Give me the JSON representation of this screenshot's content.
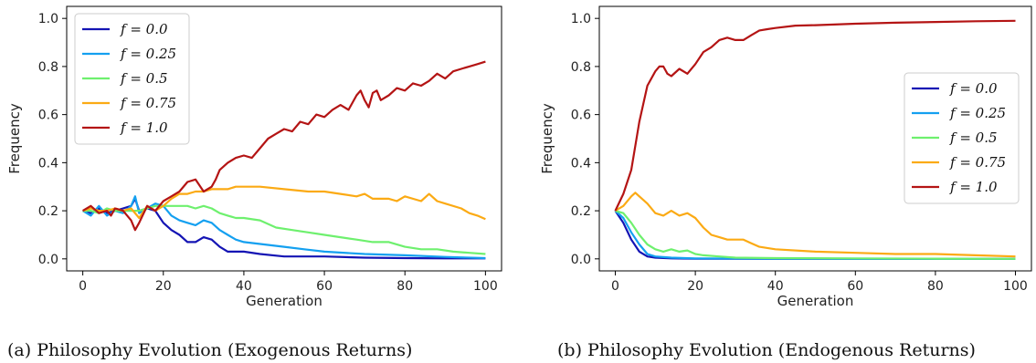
{
  "chart_data": [
    {
      "type": "line",
      "title": "",
      "xlabel": "Generation",
      "ylabel": "Frequency",
      "xlim": [
        -4,
        104
      ],
      "ylim": [
        -0.05,
        1.05
      ],
      "xticks": [
        "0",
        "20",
        "40",
        "60",
        "80",
        "100"
      ],
      "yticks": [
        "0.0",
        "0.2",
        "0.4",
        "0.6",
        "0.8",
        "1.0"
      ],
      "legend": "top-left",
      "caption": "(a) Philosophy Evolution (Exogenous Returns)",
      "series": [
        {
          "name": "f = 0.0",
          "color": "#1414b4",
          "x": [
            0,
            2,
            4,
            6,
            8,
            10,
            12,
            13,
            14,
            16,
            18,
            20,
            22,
            24,
            26,
            28,
            30,
            32,
            34,
            36,
            40,
            44,
            50,
            60,
            70,
            80,
            90,
            100
          ],
          "y": [
            0.2,
            0.19,
            0.21,
            0.19,
            0.2,
            0.21,
            0.22,
            0.25,
            0.2,
            0.21,
            0.2,
            0.15,
            0.12,
            0.1,
            0.07,
            0.07,
            0.09,
            0.08,
            0.05,
            0.03,
            0.03,
            0.02,
            0.01,
            0.01,
            0.005,
            0.003,
            0.002,
            0.002
          ]
        },
        {
          "name": "f = 0.25",
          "color": "#14a0f0",
          "x": [
            0,
            2,
            4,
            6,
            8,
            10,
            12,
            13,
            14,
            16,
            18,
            20,
            22,
            24,
            26,
            28,
            30,
            32,
            34,
            36,
            38,
            40,
            45,
            50,
            55,
            60,
            70,
            80,
            90,
            100
          ],
          "y": [
            0.2,
            0.18,
            0.22,
            0.18,
            0.2,
            0.19,
            0.22,
            0.26,
            0.19,
            0.21,
            0.23,
            0.22,
            0.18,
            0.16,
            0.15,
            0.14,
            0.16,
            0.15,
            0.12,
            0.1,
            0.08,
            0.07,
            0.06,
            0.05,
            0.04,
            0.03,
            0.02,
            0.015,
            0.008,
            0.003
          ]
        },
        {
          "name": "f = 0.5",
          "color": "#6ef06e",
          "x": [
            0,
            2,
            4,
            6,
            8,
            10,
            12,
            14,
            16,
            18,
            20,
            22,
            24,
            26,
            28,
            30,
            32,
            34,
            36,
            38,
            40,
            44,
            48,
            52,
            56,
            60,
            64,
            68,
            72,
            76,
            80,
            84,
            88,
            92,
            96,
            100
          ],
          "y": [
            0.2,
            0.2,
            0.19,
            0.21,
            0.2,
            0.2,
            0.2,
            0.2,
            0.21,
            0.22,
            0.22,
            0.22,
            0.22,
            0.22,
            0.21,
            0.22,
            0.21,
            0.19,
            0.18,
            0.17,
            0.17,
            0.16,
            0.13,
            0.12,
            0.11,
            0.1,
            0.09,
            0.08,
            0.07,
            0.07,
            0.05,
            0.04,
            0.04,
            0.03,
            0.025,
            0.02
          ]
        },
        {
          "name": "f = 0.75",
          "color": "#fbaa14",
          "x": [
            0,
            2,
            4,
            6,
            8,
            10,
            12,
            14,
            16,
            18,
            20,
            22,
            24,
            26,
            28,
            30,
            32,
            34,
            36,
            38,
            40,
            44,
            50,
            56,
            60,
            64,
            68,
            70,
            72,
            76,
            78,
            80,
            84,
            86,
            88,
            90,
            94,
            96,
            98,
            100
          ],
          "y": [
            0.2,
            0.21,
            0.2,
            0.2,
            0.21,
            0.2,
            0.21,
            0.17,
            0.22,
            0.2,
            0.22,
            0.25,
            0.27,
            0.27,
            0.28,
            0.28,
            0.29,
            0.29,
            0.29,
            0.3,
            0.3,
            0.3,
            0.29,
            0.28,
            0.28,
            0.27,
            0.26,
            0.27,
            0.25,
            0.25,
            0.24,
            0.26,
            0.24,
            0.27,
            0.24,
            0.23,
            0.21,
            0.19,
            0.18,
            0.165
          ]
        },
        {
          "name": "f = 1.0",
          "color": "#b41414",
          "x": [
            0,
            2,
            4,
            6,
            7,
            8,
            10,
            12,
            13,
            14,
            16,
            18,
            20,
            22,
            24,
            26,
            28,
            30,
            32,
            33,
            34,
            36,
            38,
            40,
            42,
            44,
            46,
            48,
            50,
            52,
            54,
            56,
            58,
            60,
            62,
            64,
            66,
            68,
            69,
            70,
            71,
            72,
            73,
            74,
            76,
            78,
            80,
            82,
            84,
            86,
            88,
            90,
            92,
            94,
            96,
            98,
            100
          ],
          "y": [
            0.2,
            0.22,
            0.19,
            0.2,
            0.18,
            0.21,
            0.2,
            0.16,
            0.12,
            0.15,
            0.22,
            0.2,
            0.24,
            0.26,
            0.28,
            0.32,
            0.33,
            0.28,
            0.3,
            0.33,
            0.37,
            0.4,
            0.42,
            0.43,
            0.42,
            0.46,
            0.5,
            0.52,
            0.54,
            0.53,
            0.57,
            0.56,
            0.6,
            0.59,
            0.62,
            0.64,
            0.62,
            0.68,
            0.7,
            0.66,
            0.63,
            0.69,
            0.7,
            0.66,
            0.68,
            0.71,
            0.7,
            0.73,
            0.72,
            0.74,
            0.77,
            0.75,
            0.78,
            0.79,
            0.8,
            0.81,
            0.82
          ]
        }
      ]
    },
    {
      "type": "line",
      "title": "",
      "xlabel": "Generation",
      "ylabel": "Frequency",
      "xlim": [
        -4,
        104
      ],
      "ylim": [
        -0.05,
        1.05
      ],
      "xticks": [
        "0",
        "20",
        "40",
        "60",
        "80",
        "100"
      ],
      "yticks": [
        "0.0",
        "0.2",
        "0.4",
        "0.6",
        "0.8",
        "1.0"
      ],
      "legend": "center-right",
      "caption": "(b) Philosophy Evolution (Endogenous Returns)",
      "series": [
        {
          "name": "f = 0.0",
          "color": "#1414b4",
          "x": [
            0,
            2,
            4,
            6,
            8,
            10,
            14,
            20,
            40,
            60,
            80,
            100
          ],
          "y": [
            0.2,
            0.15,
            0.08,
            0.03,
            0.01,
            0.005,
            0.002,
            0.001,
            0.0,
            0.0,
            0.0,
            0.0
          ]
        },
        {
          "name": "f = 0.25",
          "color": "#14a0f0",
          "x": [
            0,
            2,
            4,
            6,
            8,
            10,
            14,
            20,
            40,
            60,
            80,
            100
          ],
          "y": [
            0.2,
            0.17,
            0.11,
            0.06,
            0.02,
            0.01,
            0.005,
            0.002,
            0.001,
            0.0,
            0.0,
            0.0
          ]
        },
        {
          "name": "f = 0.5",
          "color": "#6ef06e",
          "x": [
            0,
            2,
            4,
            6,
            8,
            10,
            12,
            14,
            16,
            18,
            20,
            22,
            26,
            30,
            40,
            60,
            80,
            100
          ],
          "y": [
            0.2,
            0.19,
            0.15,
            0.1,
            0.06,
            0.04,
            0.03,
            0.04,
            0.03,
            0.035,
            0.02,
            0.015,
            0.01,
            0.005,
            0.003,
            0.002,
            0.001,
            0.0
          ]
        },
        {
          "name": "f = 0.75",
          "color": "#fbaa14",
          "x": [
            0,
            2,
            4,
            5,
            6,
            8,
            10,
            12,
            14,
            16,
            18,
            20,
            22,
            24,
            26,
            28,
            30,
            32,
            34,
            36,
            40,
            50,
            60,
            70,
            80,
            90,
            100
          ],
          "y": [
            0.2,
            0.22,
            0.26,
            0.275,
            0.26,
            0.23,
            0.19,
            0.18,
            0.2,
            0.18,
            0.19,
            0.17,
            0.13,
            0.1,
            0.09,
            0.08,
            0.08,
            0.08,
            0.065,
            0.05,
            0.04,
            0.03,
            0.025,
            0.02,
            0.02,
            0.015,
            0.01
          ]
        },
        {
          "name": "f = 1.0",
          "color": "#b41414",
          "x": [
            0,
            2,
            4,
            6,
            8,
            10,
            11,
            12,
            13,
            14,
            16,
            18,
            20,
            22,
            24,
            26,
            28,
            30,
            32,
            34,
            36,
            38,
            40,
            45,
            50,
            60,
            70,
            80,
            90,
            100
          ],
          "y": [
            0.2,
            0.27,
            0.37,
            0.57,
            0.72,
            0.78,
            0.8,
            0.8,
            0.77,
            0.76,
            0.79,
            0.77,
            0.81,
            0.86,
            0.88,
            0.91,
            0.92,
            0.91,
            0.91,
            0.93,
            0.95,
            0.955,
            0.96,
            0.97,
            0.972,
            0.978,
            0.982,
            0.985,
            0.988,
            0.99
          ]
        }
      ]
    }
  ]
}
